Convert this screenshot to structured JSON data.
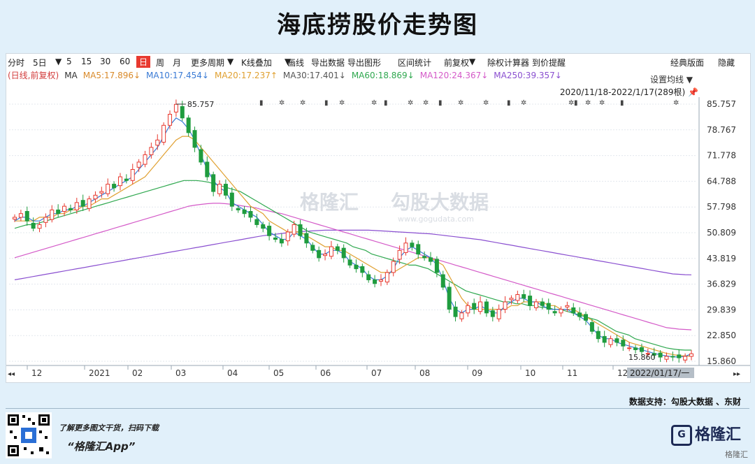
{
  "title": "海底捞股价走势图",
  "toolbar": {
    "items": [
      "分时",
      "5日",
      "▼",
      "5",
      "15",
      "30",
      "60",
      "日",
      "周",
      "月",
      "更多周期",
      "▼",
      "K线叠加",
      "▼",
      "画线",
      "导出数据",
      "导出图形",
      "区间统计",
      "前复权",
      "▼",
      "除权计算器",
      "到价提醒"
    ],
    "right_items": [
      "经典版面",
      "隐藏"
    ]
  },
  "ma_bar": [
    {
      "text": "(日线,前复权)",
      "color": "#d23c3c"
    },
    {
      "text": "MA",
      "color": "#333333"
    },
    {
      "text": "MA5:17.896↓",
      "color": "#d98a2a"
    },
    {
      "text": "MA10:17.454↓",
      "color": "#3a7bd5"
    },
    {
      "text": "MA20:17.237↑",
      "color": "#e0a030"
    },
    {
      "text": "MA30:17.401↓",
      "color": "#555555"
    },
    {
      "text": "MA60:18.869↓",
      "color": "#2fa84f"
    },
    {
      "text": "MA120:24.367↓",
      "color": "#d45ac8"
    },
    {
      "text": "MA250:39.357↓",
      "color": "#8a4fd0"
    }
  ],
  "set_ma_label": "设置均线 ▼",
  "range_label": "2020/11/18-2022/1/17(289根)",
  "chart_data": {
    "type": "candlestick",
    "y_ticks": [
      "85.757",
      "78.767",
      "71.778",
      "64.788",
      "57.798",
      "50.809",
      "43.819",
      "36.829",
      "29.839",
      "22.850",
      "15.860"
    ],
    "ylim": [
      15.86,
      85.757
    ],
    "x_ticks": [
      "12",
      "2021",
      "02",
      "03",
      "04",
      "05",
      "06",
      "07",
      "08",
      "09",
      "10",
      "11",
      "12"
    ],
    "high_label": "85.757",
    "low_label": "15.860",
    "cursor_date": "2022/01/17/一",
    "close_path": [
      55,
      56,
      54,
      52,
      53,
      55,
      57,
      56,
      58,
      57,
      59,
      58,
      60,
      61,
      62,
      64,
      63,
      66,
      65,
      68,
      70,
      72,
      74,
      76,
      80,
      83,
      85.7,
      82,
      78,
      74,
      70,
      66,
      62,
      64,
      61,
      58,
      57,
      56,
      55,
      53,
      52,
      50,
      49,
      48,
      51,
      53,
      50,
      48,
      46,
      44,
      45,
      47,
      46,
      44,
      42,
      41,
      40,
      38,
      37,
      38,
      40,
      43,
      46,
      48,
      47,
      45,
      44,
      43,
      40,
      36,
      30,
      28,
      29,
      31,
      30,
      32,
      29,
      28,
      30,
      32,
      33,
      34,
      33,
      31,
      32,
      31,
      30,
      29,
      30,
      31,
      29,
      28,
      27,
      24,
      22,
      21,
      22,
      21,
      20,
      19.5,
      19,
      18.5,
      18,
      17.5,
      17,
      17.2,
      17,
      16.8,
      17.2,
      17.9
    ],
    "ma5_path": [
      54,
      55,
      55,
      54,
      54,
      55,
      56,
      56,
      57,
      57,
      58,
      58,
      59,
      60,
      61,
      62,
      63,
      64,
      65,
      66,
      68,
      70,
      72,
      74,
      77,
      80,
      82,
      81,
      79,
      76,
      72,
      68,
      65,
      63,
      62,
      59,
      58,
      57,
      56,
      55,
      53,
      51,
      50,
      49,
      49,
      51,
      50,
      49,
      47,
      45,
      45,
      46,
      46,
      45,
      43,
      42,
      41,
      39,
      38,
      38,
      39,
      41,
      44,
      46,
      47,
      46,
      45,
      44,
      42,
      38,
      33,
      30,
      29,
      30,
      30,
      31,
      30,
      29,
      29,
      31,
      32,
      33,
      33,
      32,
      32,
      31,
      30,
      30,
      30,
      30,
      29,
      28,
      27,
      25,
      23,
      22,
      22,
      21,
      20.5,
      20,
      19.5,
      19,
      18.5,
      18,
      17.6,
      17.3,
      17.1,
      17,
      17.2,
      17.9
    ],
    "ma20_path": [
      54,
      54,
      54,
      54,
      55,
      55,
      55,
      56,
      56,
      57,
      57,
      58,
      58,
      59,
      60,
      60,
      61,
      62,
      63,
      64,
      65,
      66,
      68,
      70,
      72,
      74,
      76,
      77,
      77,
      76,
      74,
      72,
      70,
      68,
      66,
      64,
      62,
      60,
      58,
      57,
      56,
      54,
      53,
      52,
      51,
      51,
      51,
      50,
      49,
      48,
      47,
      47,
      46,
      46,
      45,
      44,
      43,
      42,
      41,
      40,
      40,
      40,
      41,
      42,
      43,
      44,
      44,
      44,
      43,
      42,
      39,
      36,
      33,
      31,
      30,
      30,
      30,
      30,
      30,
      30,
      31,
      31,
      32,
      32,
      32,
      32,
      31,
      31,
      30,
      30,
      30,
      29,
      28,
      27,
      26,
      25,
      24,
      23,
      22,
      21,
      20.5,
      20,
      19.5,
      19,
      18.5,
      18,
      17.7,
      17.4,
      17.3,
      17.2
    ],
    "ma60_path": [
      52,
      52.5,
      53,
      53,
      53.5,
      54,
      54.5,
      55,
      55.5,
      56,
      56.5,
      57,
      57.5,
      58,
      58.5,
      59,
      59.5,
      60,
      60.5,
      61,
      61.5,
      62,
      62.5,
      63,
      63.5,
      64,
      64.5,
      65,
      65,
      65,
      64.8,
      64.5,
      64,
      63.5,
      63,
      62.5,
      62,
      61,
      60,
      59,
      58,
      57,
      56,
      55,
      54,
      53,
      52,
      51,
      50.5,
      50,
      49.5,
      49,
      48.5,
      48,
      47,
      46.5,
      46,
      45,
      44.5,
      44,
      43.5,
      43,
      42.5,
      42,
      42,
      41.5,
      41,
      40,
      39,
      38,
      37,
      36,
      35,
      34.5,
      34,
      33.5,
      33,
      32.5,
      32,
      32,
      31.5,
      31.5,
      31,
      31,
      30.5,
      30.5,
      30,
      30,
      29.5,
      29,
      28.5,
      28,
      27.5,
      27,
      26,
      25,
      24,
      23.5,
      23,
      22,
      21.5,
      21,
      20.5,
      20,
      19.5,
      19.2,
      19,
      18.9,
      18.9
    ],
    "ma120_path": [
      44,
      44.5,
      45,
      45.5,
      46,
      46.5,
      47,
      47.5,
      48,
      48.5,
      49,
      49.5,
      50,
      50.5,
      51,
      51.5,
      52,
      52.5,
      53,
      53.5,
      54,
      54.5,
      55,
      55.5,
      56,
      56.5,
      57,
      57.5,
      58,
      58.3,
      58.5,
      58.7,
      58.8,
      58.8,
      58.7,
      58.5,
      58.3,
      58,
      57.8,
      57.5,
      57,
      56.7,
      56.3,
      56,
      55.5,
      55,
      54.5,
      54,
      53.5,
      53,
      52.5,
      52,
      51.5,
      51,
      50.5,
      50,
      49.5,
      49,
      48.5,
      48,
      47.5,
      47,
      46.5,
      46,
      45.5,
      45,
      44.5,
      44,
      43.5,
      43,
      42.5,
      42,
      41.5,
      41,
      40.5,
      40,
      39.5,
      39,
      38.5,
      38,
      37.5,
      37,
      36.5,
      36,
      35.5,
      35,
      34.5,
      34,
      33.5,
      33,
      32.5,
      32,
      31.5,
      31,
      30.5,
      30,
      29.5,
      29,
      28.5,
      28,
      27.5,
      27,
      26.5,
      26,
      25.5,
      25,
      24.8,
      24.6,
      24.5,
      24.4
    ],
    "ma250_path": [
      38,
      38.3,
      38.6,
      38.9,
      39.2,
      39.5,
      39.8,
      40.1,
      40.4,
      40.7,
      41,
      41.3,
      41.6,
      41.9,
      42.2,
      42.5,
      42.8,
      43.1,
      43.4,
      43.7,
      44,
      44.3,
      44.6,
      44.9,
      45.2,
      45.5,
      45.8,
      46.1,
      46.4,
      46.7,
      47,
      47.3,
      47.6,
      47.9,
      48.2,
      48.5,
      48.8,
      49.1,
      49.4,
      49.7,
      50,
      50.2,
      50.4,
      50.6,
      50.8,
      51,
      51.1,
      51.2,
      51.3,
      51.4,
      51.5,
      51.5,
      51.5,
      51.5,
      51.5,
      51.5,
      51.5,
      51.5,
      51.4,
      51.3,
      51.2,
      51.1,
      51,
      50.9,
      50.8,
      50.7,
      50.6,
      50.5,
      50.3,
      50.1,
      49.9,
      49.7,
      49.5,
      49.3,
      49.1,
      48.9,
      48.6,
      48.3,
      48,
      47.7,
      47.4,
      47.1,
      46.8,
      46.5,
      46.2,
      45.9,
      45.6,
      45.3,
      45,
      44.7,
      44.4,
      44.1,
      43.8,
      43.5,
      43.2,
      42.9,
      42.6,
      42.3,
      42,
      41.7,
      41.4,
      41.1,
      40.8,
      40.5,
      40.2,
      39.9,
      39.6,
      39.5,
      39.4,
      39.36
    ]
  },
  "footer": {
    "source": "数据支持：勾股大数据 、东财",
    "slogan1": "了解更多图文干货，扫码下载",
    "slogan2": "“格隆汇App”",
    "brand": "格隆汇",
    "brand_sm": "格隆汇"
  },
  "watermark": {
    "left": "格隆汇",
    "right": "勾股大数据",
    "url": "www.gogudata.com"
  },
  "colors": {
    "up": "#e8392f",
    "down": "#1f9c3e",
    "bg": "#ffffff"
  }
}
